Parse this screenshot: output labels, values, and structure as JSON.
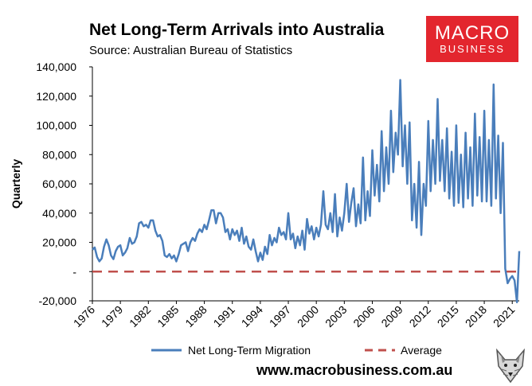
{
  "header": {
    "title": "Net Long-Term Arrivals into Australia",
    "subtitle": "Source: Australian Bureau of Statistics"
  },
  "logo": {
    "line1": "MACRO",
    "line2": "BUSINESS",
    "color": "#e3262e"
  },
  "footer": {
    "url": "www.macrobusiness.com.au"
  },
  "chart_data": {
    "type": "line",
    "title": "Net Long-Term Arrivals into Australia",
    "ylabel": "Quarterly",
    "xlabel": "",
    "ylim": [
      -20000,
      140000
    ],
    "xlim": [
      1976,
      2021.75
    ],
    "y_ticks": [
      -20000,
      0,
      20000,
      40000,
      60000,
      80000,
      100000,
      120000,
      140000
    ],
    "y_tick_labels": [
      "-20,000",
      "-",
      "20,000",
      "40,000",
      "60,000",
      "80,000",
      "100,000",
      "120,000",
      "140,000"
    ],
    "x_tick_labels": [
      "1976",
      "1979",
      "1982",
      "1985",
      "1988",
      "1991",
      "1994",
      "1997",
      "2000",
      "2003",
      "2006",
      "2009",
      "2012",
      "2015",
      "2018",
      "2021"
    ],
    "grid": false,
    "legend_position": "bottom",
    "series": [
      {
        "name": "Net Long-Term Migration",
        "color": "#4a7ebb",
        "points": [
          [
            1976.0,
            15000
          ],
          [
            1976.25,
            16500
          ],
          [
            1976.5,
            10000
          ],
          [
            1976.75,
            7000
          ],
          [
            1977.0,
            9000
          ],
          [
            1977.25,
            17000
          ],
          [
            1977.5,
            22000
          ],
          [
            1977.75,
            18000
          ],
          [
            1978.0,
            11000
          ],
          [
            1978.25,
            8500
          ],
          [
            1978.5,
            14000
          ],
          [
            1978.75,
            17000
          ],
          [
            1979.0,
            18000
          ],
          [
            1979.25,
            11000
          ],
          [
            1979.5,
            13000
          ],
          [
            1979.75,
            16000
          ],
          [
            1980.0,
            23000
          ],
          [
            1980.25,
            19000
          ],
          [
            1980.5,
            20000
          ],
          [
            1980.75,
            24000
          ],
          [
            1981.0,
            33000
          ],
          [
            1981.25,
            34000
          ],
          [
            1981.5,
            31000
          ],
          [
            1981.75,
            32000
          ],
          [
            1982.0,
            30000
          ],
          [
            1982.25,
            35000
          ],
          [
            1982.5,
            35000
          ],
          [
            1982.75,
            28000
          ],
          [
            1983.0,
            24000
          ],
          [
            1983.25,
            25000
          ],
          [
            1983.5,
            21000
          ],
          [
            1983.75,
            11000
          ],
          [
            1984.0,
            10000
          ],
          [
            1984.25,
            12000
          ],
          [
            1984.5,
            9000
          ],
          [
            1984.75,
            11000
          ],
          [
            1985.0,
            7000
          ],
          [
            1985.25,
            12000
          ],
          [
            1985.5,
            18000
          ],
          [
            1985.75,
            19000
          ],
          [
            1986.0,
            20000
          ],
          [
            1986.25,
            14000
          ],
          [
            1986.5,
            20000
          ],
          [
            1986.75,
            23000
          ],
          [
            1987.0,
            21000
          ],
          [
            1987.25,
            26000
          ],
          [
            1987.5,
            29000
          ],
          [
            1987.75,
            27000
          ],
          [
            1988.0,
            32000
          ],
          [
            1988.25,
            29000
          ],
          [
            1988.5,
            35000
          ],
          [
            1988.75,
            42000
          ],
          [
            1989.0,
            42000
          ],
          [
            1989.25,
            33000
          ],
          [
            1989.5,
            40000
          ],
          [
            1989.75,
            40000
          ],
          [
            1990.0,
            37000
          ],
          [
            1990.25,
            27000
          ],
          [
            1990.5,
            29000
          ],
          [
            1990.75,
            22000
          ],
          [
            1991.0,
            29000
          ],
          [
            1991.25,
            25000
          ],
          [
            1991.5,
            28000
          ],
          [
            1991.75,
            21000
          ],
          [
            1992.0,
            30000
          ],
          [
            1992.25,
            19000
          ],
          [
            1992.5,
            24000
          ],
          [
            1992.75,
            17000
          ],
          [
            1993.0,
            15000
          ],
          [
            1993.25,
            22000
          ],
          [
            1993.5,
            14000
          ],
          [
            1993.75,
            7000
          ],
          [
            1994.0,
            13000
          ],
          [
            1994.25,
            8000
          ],
          [
            1994.5,
            17000
          ],
          [
            1994.75,
            12000
          ],
          [
            1995.0,
            25000
          ],
          [
            1995.25,
            18000
          ],
          [
            1995.5,
            23000
          ],
          [
            1995.75,
            20000
          ],
          [
            1996.0,
            30000
          ],
          [
            1996.25,
            25000
          ],
          [
            1996.5,
            27000
          ],
          [
            1996.75,
            22000
          ],
          [
            1997.0,
            40000
          ],
          [
            1997.25,
            22000
          ],
          [
            1997.5,
            26000
          ],
          [
            1997.75,
            16000
          ],
          [
            1998.0,
            24000
          ],
          [
            1998.25,
            18000
          ],
          [
            1998.5,
            28000
          ],
          [
            1998.75,
            15000
          ],
          [
            1999.0,
            36000
          ],
          [
            1999.25,
            26000
          ],
          [
            1999.5,
            31000
          ],
          [
            1999.75,
            22000
          ],
          [
            2000.0,
            30000
          ],
          [
            2000.25,
            24000
          ],
          [
            2000.5,
            32000
          ],
          [
            2000.75,
            55000
          ],
          [
            2001.0,
            32000
          ],
          [
            2001.25,
            29000
          ],
          [
            2001.5,
            40000
          ],
          [
            2001.75,
            27000
          ],
          [
            2002.0,
            53000
          ],
          [
            2002.25,
            24000
          ],
          [
            2002.5,
            37000
          ],
          [
            2002.75,
            28000
          ],
          [
            2003.0,
            40000
          ],
          [
            2003.25,
            60000
          ],
          [
            2003.5,
            34000
          ],
          [
            2003.75,
            47000
          ],
          [
            2004.0,
            57000
          ],
          [
            2004.25,
            31000
          ],
          [
            2004.5,
            46000
          ],
          [
            2004.75,
            33000
          ],
          [
            2005.0,
            78000
          ],
          [
            2005.25,
            35000
          ],
          [
            2005.5,
            55000
          ],
          [
            2005.75,
            38000
          ],
          [
            2006.0,
            83000
          ],
          [
            2006.25,
            52000
          ],
          [
            2006.5,
            73000
          ],
          [
            2006.75,
            48000
          ],
          [
            2007.0,
            96000
          ],
          [
            2007.25,
            55000
          ],
          [
            2007.5,
            85000
          ],
          [
            2007.75,
            60000
          ],
          [
            2008.0,
            110000
          ],
          [
            2008.25,
            68000
          ],
          [
            2008.5,
            95000
          ],
          [
            2008.75,
            80000
          ],
          [
            2009.0,
            131000
          ],
          [
            2009.25,
            72000
          ],
          [
            2009.5,
            100000
          ],
          [
            2009.75,
            60000
          ],
          [
            2010.0,
            102000
          ],
          [
            2010.25,
            35000
          ],
          [
            2010.5,
            60000
          ],
          [
            2010.75,
            30000
          ],
          [
            2011.0,
            75000
          ],
          [
            2011.25,
            25000
          ],
          [
            2011.5,
            60000
          ],
          [
            2011.75,
            45000
          ],
          [
            2012.0,
            103000
          ],
          [
            2012.25,
            55000
          ],
          [
            2012.5,
            90000
          ],
          [
            2012.75,
            60000
          ],
          [
            2013.0,
            118000
          ],
          [
            2013.25,
            62000
          ],
          [
            2013.5,
            90000
          ],
          [
            2013.75,
            55000
          ],
          [
            2014.0,
            98000
          ],
          [
            2014.25,
            50000
          ],
          [
            2014.5,
            82000
          ],
          [
            2014.75,
            45000
          ],
          [
            2015.0,
            100000
          ],
          [
            2015.25,
            47000
          ],
          [
            2015.5,
            80000
          ],
          [
            2015.75,
            44000
          ],
          [
            2016.0,
            95000
          ],
          [
            2016.25,
            50000
          ],
          [
            2016.5,
            85000
          ],
          [
            2016.75,
            45000
          ],
          [
            2017.0,
            108000
          ],
          [
            2017.25,
            52000
          ],
          [
            2017.5,
            92000
          ],
          [
            2017.75,
            48000
          ],
          [
            2018.0,
            110000
          ],
          [
            2018.25,
            48000
          ],
          [
            2018.5,
            90000
          ],
          [
            2018.75,
            45000
          ],
          [
            2019.0,
            128000
          ],
          [
            2019.25,
            50000
          ],
          [
            2019.5,
            93000
          ],
          [
            2019.75,
            40000
          ],
          [
            2020.0,
            88000
          ],
          [
            2020.25,
            2000
          ],
          [
            2020.5,
            -8000
          ],
          [
            2020.75,
            -5000
          ],
          [
            2021.0,
            -3000
          ],
          [
            2021.25,
            -6000
          ],
          [
            2021.5,
            -21000
          ],
          [
            2021.75,
            14000
          ]
        ]
      },
      {
        "name": "Average",
        "color": "#c0504d",
        "points": [
          [
            1976.0,
            0
          ],
          [
            2021.75,
            0
          ]
        ]
      }
    ]
  }
}
